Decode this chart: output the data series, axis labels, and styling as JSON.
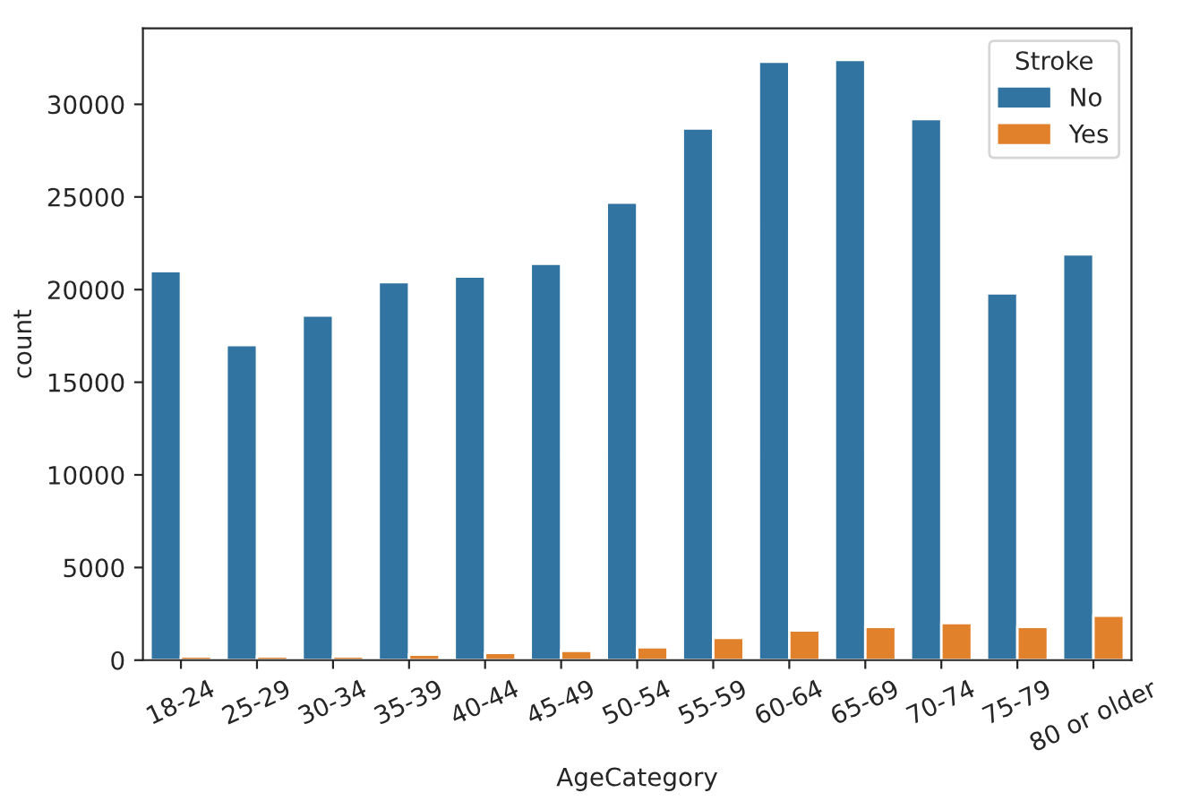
{
  "chart_data": {
    "type": "bar",
    "xlabel": "AgeCategory",
    "ylabel": "count",
    "legend_title": "Stroke",
    "categories": [
      "18-24",
      "25-29",
      "30-34",
      "35-39",
      "40-44",
      "45-49",
      "50-54",
      "55-59",
      "60-64",
      "65-69",
      "70-74",
      "75-79",
      "80 or older"
    ],
    "series": [
      {
        "name": "No",
        "color": "#3274a1",
        "values": [
          21000,
          17000,
          18600,
          20400,
          20700,
          21400,
          24700,
          28700,
          32300,
          32400,
          29200,
          19800,
          21900
        ]
      },
      {
        "name": "Yes",
        "color": "#e1812c",
        "values": [
          200,
          200,
          200,
          300,
          400,
          500,
          700,
          1200,
          1600,
          1800,
          2000,
          1800,
          2400
        ]
      }
    ],
    "ylim": [
      0,
      34100
    ],
    "yticks": [
      0,
      5000,
      10000,
      15000,
      20000,
      25000,
      30000
    ],
    "grid": false,
    "legend": "top right"
  }
}
